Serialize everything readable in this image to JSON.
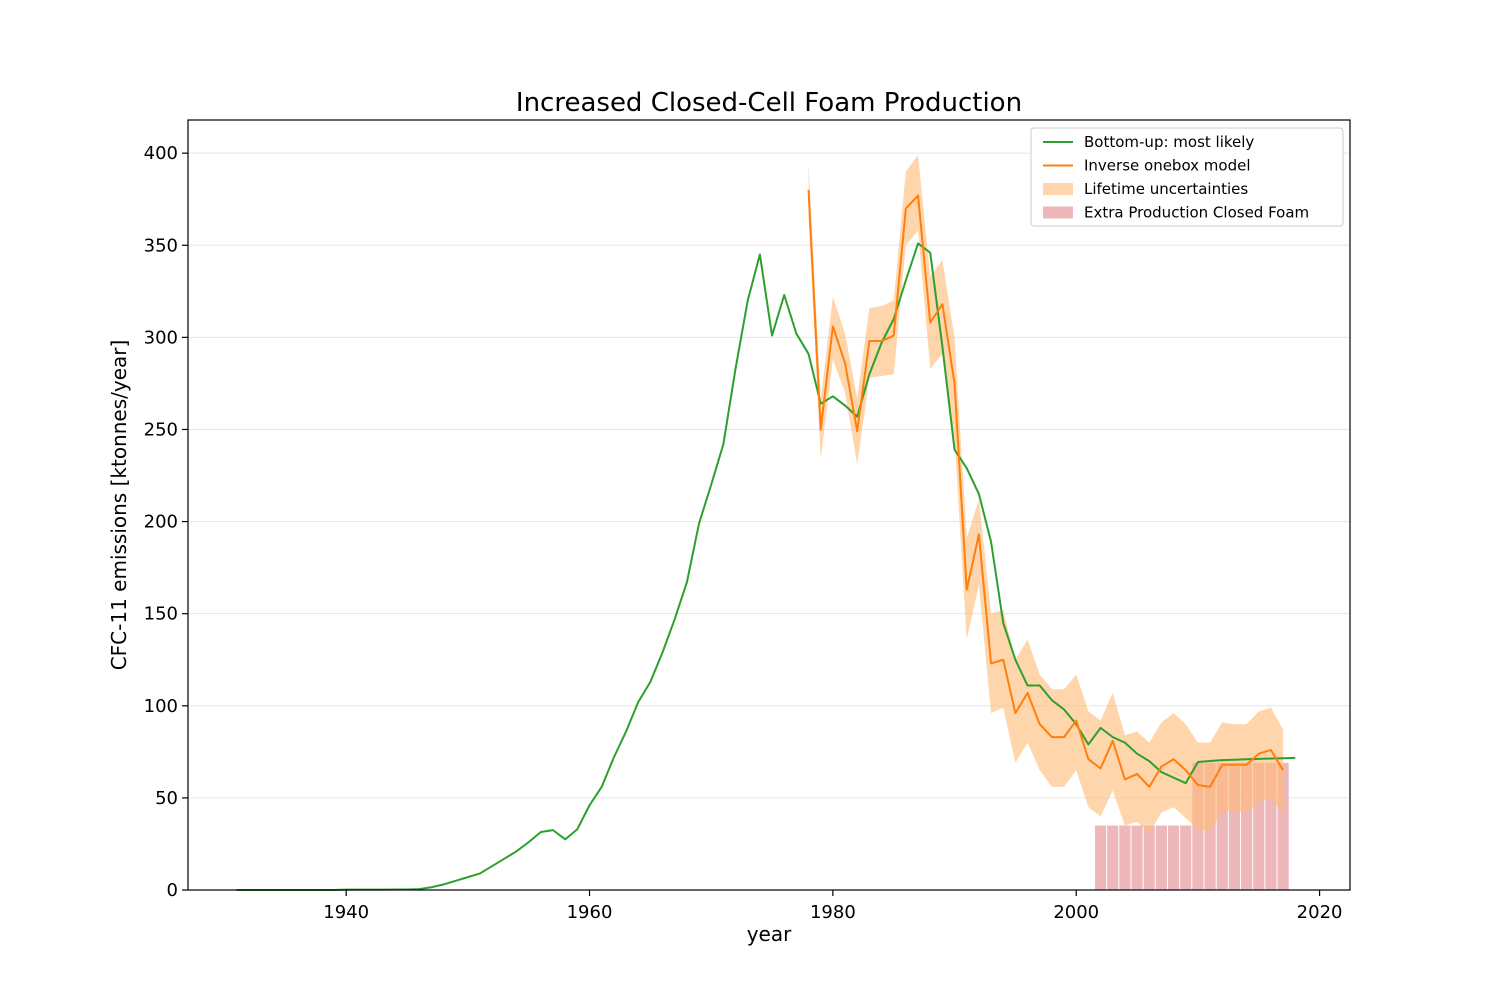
{
  "chart_data": {
    "type": "line",
    "title": "Increased Closed-Cell Foam Production",
    "xlabel": "year",
    "ylabel": "CFC-11 emissions [ktonnes/year]",
    "xlim": [
      1927,
      2022.5
    ],
    "ylim": [
      0,
      418
    ],
    "xticks": [
      1940,
      1960,
      1980,
      2000,
      2020
    ],
    "yticks": [
      0,
      50,
      100,
      150,
      200,
      250,
      300,
      350,
      400
    ],
    "grid": "horizontal",
    "legend_position": "top-right",
    "colors": {
      "bottom_up": "#2ca02c",
      "inverse": "#ff7f0e",
      "band": "#ffbb78",
      "bars": "#e8a0a3"
    },
    "legend": [
      {
        "label": "Bottom-up: most likely",
        "kind": "line",
        "key": "bottom_up"
      },
      {
        "label": "Inverse onebox model",
        "kind": "line",
        "key": "inverse"
      },
      {
        "label": "Lifetime uncertainties",
        "kind": "patch",
        "key": "band"
      },
      {
        "label": "Extra Production Closed Foam",
        "kind": "patch",
        "key": "bars"
      }
    ],
    "series": [
      {
        "name": "Bottom-up: most likely",
        "x": [
          1931,
          1932,
          1933,
          1934,
          1935,
          1936,
          1937,
          1938,
          1939,
          1940,
          1941,
          1942,
          1943,
          1944,
          1945,
          1946,
          1947,
          1948,
          1949,
          1950,
          1951,
          1952,
          1953,
          1954,
          1955,
          1956,
          1957,
          1958,
          1959,
          1960,
          1961,
          1962,
          1963,
          1964,
          1965,
          1966,
          1967,
          1968,
          1969,
          1970,
          1971,
          1972,
          1973,
          1974,
          1975,
          1976,
          1977,
          1978,
          1979,
          1980,
          1981,
          1982,
          1983,
          1984,
          1985,
          1986,
          1987,
          1988,
          1989,
          1990,
          1991,
          1992,
          1993,
          1994,
          1995,
          1996,
          1997,
          1998,
          1999,
          2000,
          2001,
          2002,
          2003,
          2004,
          2005,
          2006,
          2007,
          2008,
          2009,
          2010,
          2011,
          2012,
          2013,
          2014,
          2015,
          2016,
          2017,
          2018
        ],
        "y": [
          0,
          0,
          0,
          0,
          0,
          0,
          0,
          0,
          0,
          0.2,
          0.2,
          0.2,
          0.2,
          0.3,
          0.3,
          0.5,
          1.5,
          3,
          5,
          7,
          9,
          13,
          17,
          21,
          26,
          31.5,
          32.5,
          27.5,
          33,
          46,
          56,
          72,
          86,
          102,
          113,
          129,
          147,
          167,
          199,
          220,
          242,
          283,
          320,
          345,
          301,
          323,
          302,
          291,
          264,
          268,
          263,
          257,
          280,
          297,
          310,
          331,
          351,
          346,
          295,
          239,
          229,
          215,
          189,
          145,
          125,
          111,
          111,
          103,
          98,
          90,
          79,
          88,
          83,
          80,
          74,
          70,
          64,
          61,
          58,
          69.5,
          70,
          70.5,
          70.7,
          71,
          71.2,
          71.4,
          71.5,
          71.7
        ]
      },
      {
        "name": "Inverse onebox model",
        "x": [
          1978,
          1979,
          1980,
          1981,
          1982,
          1983,
          1984,
          1985,
          1986,
          1987,
          1988,
          1989,
          1990,
          1991,
          1992,
          1993,
          1994,
          1995,
          1996,
          1997,
          1998,
          1999,
          2000,
          2001,
          2002,
          2003,
          2004,
          2005,
          2006,
          2007,
          2008,
          2009,
          2010,
          2011,
          2012,
          2013,
          2014,
          2015,
          2016,
          2017
        ],
        "y": [
          380,
          250,
          306,
          286,
          249,
          298,
          298,
          301,
          370,
          377,
          308,
          318,
          275,
          163,
          193,
          123,
          125,
          96,
          107,
          90,
          83,
          83,
          92,
          71,
          66,
          81,
          60,
          63,
          56,
          67,
          71,
          65,
          57,
          56,
          68,
          68,
          68,
          74,
          76,
          65
        ]
      }
    ],
    "uncertainty_band": {
      "name": "Lifetime uncertainties",
      "x": [
        1978,
        1979,
        1980,
        1981,
        1982,
        1983,
        1984,
        1985,
        1986,
        1987,
        1988,
        1989,
        1990,
        1991,
        1992,
        1993,
        1994,
        1995,
        1996,
        1997,
        1998,
        1999,
        2000,
        2001,
        2002,
        2003,
        2004,
        2005,
        2006,
        2007,
        2008,
        2009,
        2010,
        2011,
        2012,
        2013,
        2014,
        2015,
        2016,
        2017
      ],
      "low": [
        366,
        234,
        288,
        270,
        231,
        278,
        279,
        280,
        350,
        358,
        283,
        291,
        245,
        136,
        166,
        96,
        99,
        69,
        80,
        65,
        56,
        56,
        65,
        45,
        40,
        54,
        35,
        37,
        31,
        42,
        45,
        39,
        33,
        32,
        43,
        43,
        42,
        48,
        50,
        41
      ],
      "high": [
        394,
        266,
        322,
        302,
        267,
        316,
        317,
        320,
        390,
        399,
        333,
        342,
        300,
        191,
        212,
        150,
        152,
        125,
        136,
        117,
        109,
        109,
        117,
        97,
        92,
        107,
        84,
        86,
        80,
        91,
        96,
        90,
        80,
        80,
        91,
        90,
        90,
        97,
        99,
        87
      ]
    },
    "bars": {
      "name": "Extra Production Closed Foam",
      "x": [
        2002,
        2003,
        2004,
        2005,
        2006,
        2007,
        2008,
        2009,
        2010,
        2011,
        2012,
        2013,
        2014,
        2015,
        2016,
        2017
      ],
      "values": [
        35,
        35,
        35,
        35,
        35,
        35,
        35,
        35,
        69,
        69,
        69,
        69,
        69,
        69,
        69,
        69
      ]
    }
  }
}
